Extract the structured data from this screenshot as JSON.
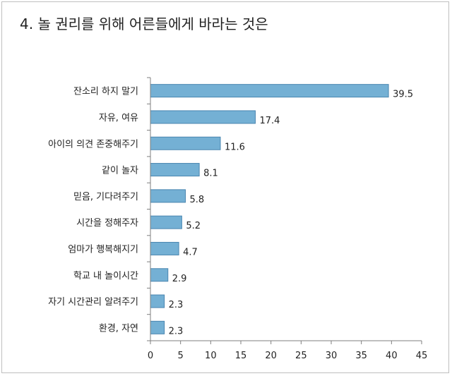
{
  "chart_data": {
    "type": "bar",
    "orientation": "horizontal",
    "title": "4. 놀 권리를 위해 어른들에게 바라는 것은",
    "categories": [
      "잔소리 하지 말기",
      "자유, 여유",
      "아이의 의견 존중해주기",
      "같이 놀자",
      "믿음, 기다려주기",
      "시간을 정해주자",
      "엄마가 행복해지기",
      "학교 내 놀이시간",
      "자기 시간관리 알려주기",
      "환경, 자연"
    ],
    "values": [
      39.5,
      17.4,
      11.6,
      8.1,
      5.8,
      5.2,
      4.7,
      2.9,
      2.3,
      2.3
    ],
    "value_labels": [
      "39.5",
      "17.4",
      "11.6",
      "8.1",
      "5.8",
      "5.2",
      "4.7",
      "2.9",
      "2.3",
      "2.3"
    ],
    "xlim": [
      0,
      45
    ],
    "x_ticks": [
      0,
      5,
      10,
      15,
      20,
      25,
      30,
      35,
      40,
      45
    ],
    "grid": false,
    "legend": "none",
    "bar_color": "#74b0d4",
    "bar_edge_color": "#4a86b0",
    "axis_color": "#7f7f7f"
  }
}
